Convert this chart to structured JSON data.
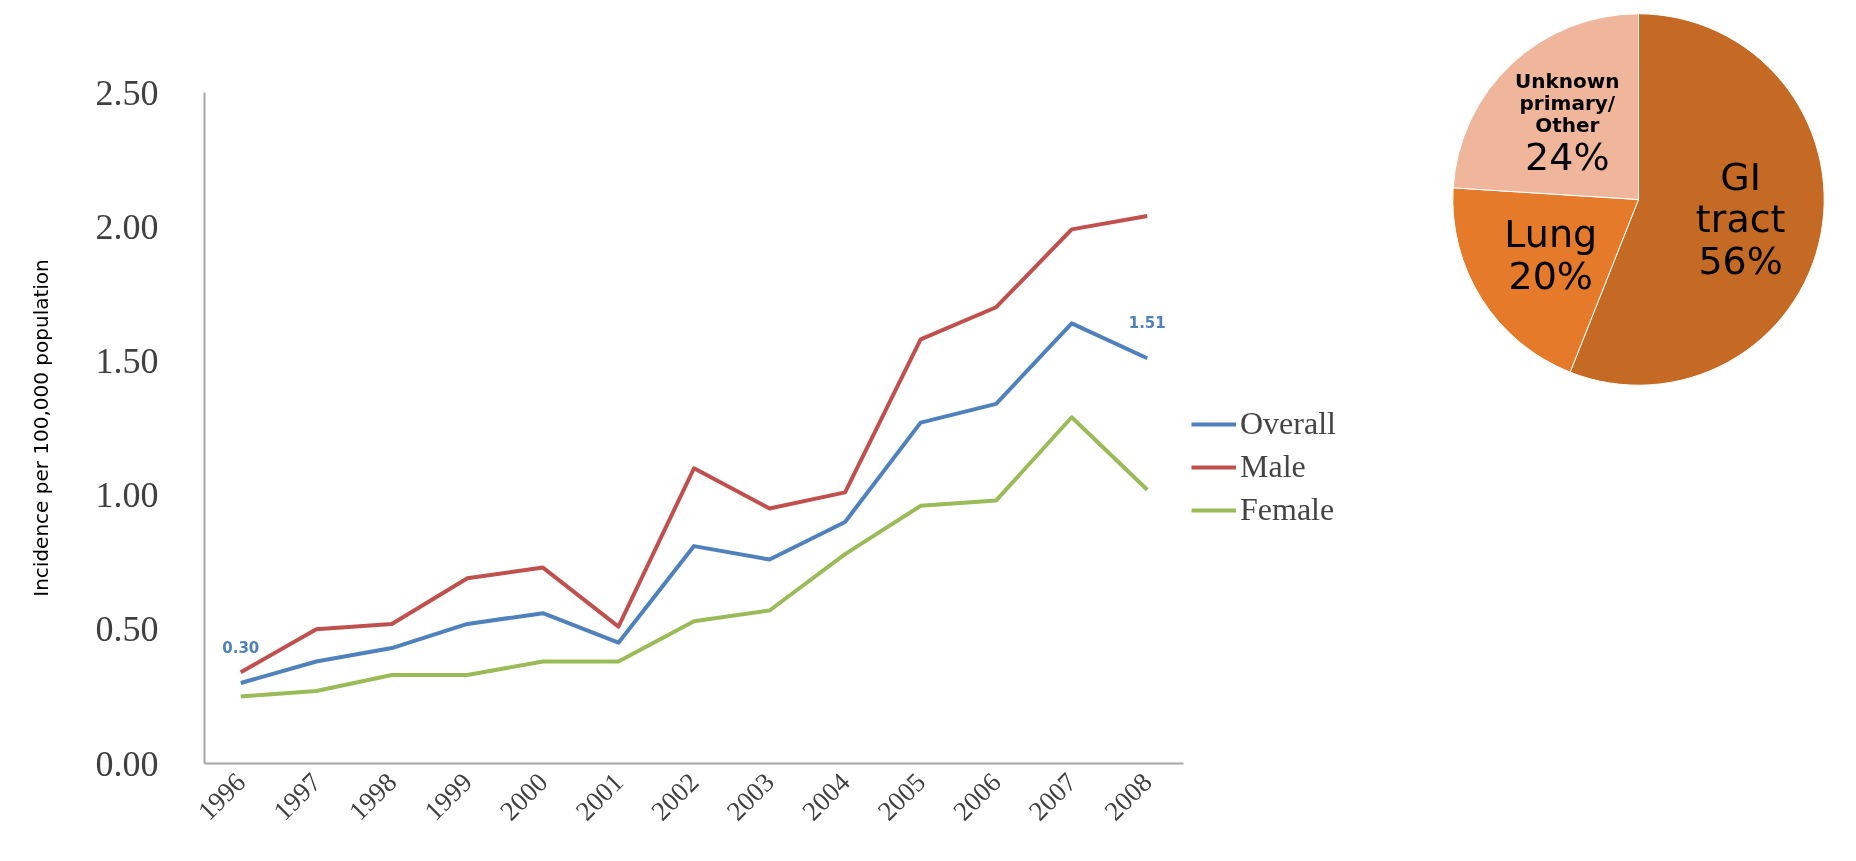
{
  "chart_data": [
    {
      "type": "line",
      "ylabel": "Incidence per 100,000 population",
      "categories": [
        "1996",
        "1997",
        "1998",
        "1999",
        "2000",
        "2001",
        "2002",
        "2003",
        "2004",
        "2005",
        "2006",
        "2007",
        "2008"
      ],
      "ylim": [
        0,
        2.5
      ],
      "yticks": [
        {
          "value": 0,
          "label": "0.00"
        },
        {
          "value": 0.5,
          "label": "0.50"
        },
        {
          "value": 1,
          "label": "1.00"
        },
        {
          "value": 1.5,
          "label": "1.50"
        },
        {
          "value": 2,
          "label": "2.00"
        },
        {
          "value": 2.5,
          "label": "2.50"
        }
      ],
      "legend": "right",
      "series": [
        {
          "name": "Overall",
          "color": "#4f81bd",
          "values": [
            0.3,
            0.38,
            0.43,
            0.52,
            0.56,
            0.45,
            0.81,
            0.76,
            0.9,
            1.27,
            1.34,
            1.64,
            1.51
          ],
          "value_labels": [
            "0.30",
            null,
            null,
            null,
            null,
            null,
            null,
            null,
            null,
            null,
            null,
            null,
            "1.51"
          ]
        },
        {
          "name": "Male",
          "color": "#c0504d",
          "values": [
            0.34,
            0.5,
            0.52,
            0.69,
            0.73,
            0.51,
            1.1,
            0.95,
            1.01,
            1.58,
            1.7,
            1.99,
            2.04
          ]
        },
        {
          "name": "Female",
          "color": "#9bbb59",
          "values": [
            0.25,
            0.27,
            0.33,
            0.33,
            0.38,
            0.38,
            0.53,
            0.57,
            0.78,
            0.96,
            0.98,
            1.29,
            1.02
          ]
        }
      ]
    },
    {
      "type": "pie",
      "categories": [
        "GI tract",
        "Lung",
        "Unknown primary/ Other"
      ],
      "values": [
        56,
        20,
        24
      ],
      "colors": [
        "#c46a24",
        "#e47a2a",
        "#efb69c"
      ],
      "value_labels": [
        "56%",
        "20%",
        "24%"
      ]
    }
  ]
}
